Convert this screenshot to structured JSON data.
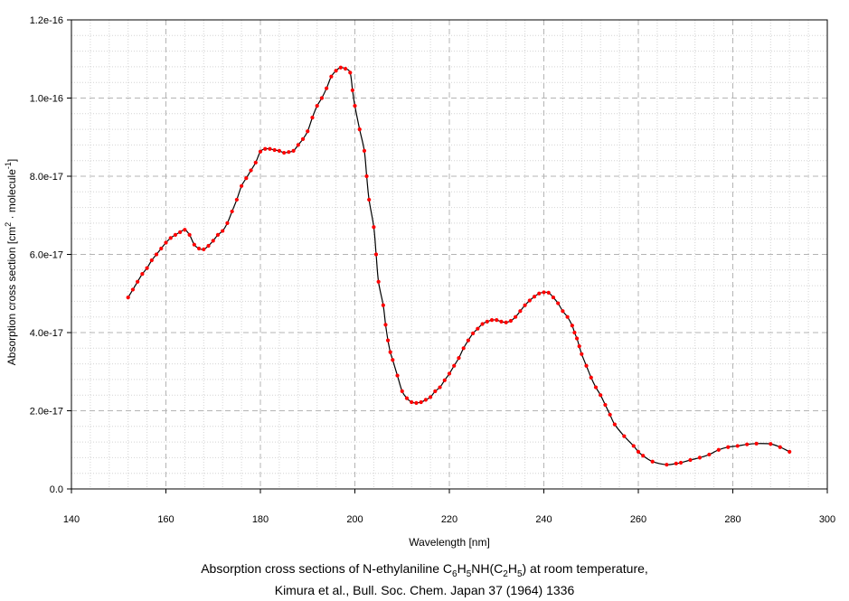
{
  "chart_data": {
    "type": "line",
    "title": "",
    "xlabel": "Wavelength [nm]",
    "ylabel": "Absorption cross section [cm² · molecule⁻¹]",
    "ylabel_parts": {
      "main": "Absorption cross section [cm",
      "sup1": "2",
      "mid": " · molecule",
      "sup2": "-1",
      "end": "]"
    },
    "xlim": [
      140,
      300
    ],
    "ylim": [
      0,
      1.2e-16
    ],
    "x_ticks": [
      140,
      160,
      180,
      200,
      220,
      240,
      260,
      280,
      300
    ],
    "x_tick_labels": [
      "140",
      "160",
      "180",
      "200",
      "220",
      "240",
      "260",
      "280",
      "300"
    ],
    "y_ticks": [
      0,
      2e-17,
      4e-17,
      6e-17,
      8e-17,
      1e-16,
      1.2e-16
    ],
    "y_tick_labels": [
      "0.0",
      "2.0e-17",
      "4.0e-17",
      "6.0e-17",
      "8.0e-17",
      "1.0e-16",
      "1.2e-16"
    ],
    "grid": true,
    "line_color": "#000000",
    "marker_color": "#ff0000",
    "points": [
      [
        152.0,
        4.9e-17
      ],
      [
        153.0,
        5.1e-17
      ],
      [
        154.0,
        5.3e-17
      ],
      [
        155.0,
        5.5e-17
      ],
      [
        156.0,
        5.65e-17
      ],
      [
        157.0,
        5.85e-17
      ],
      [
        158.0,
        6e-17
      ],
      [
        159.0,
        6.15e-17
      ],
      [
        160.0,
        6.3e-17
      ],
      [
        161.0,
        6.42e-17
      ],
      [
        162.0,
        6.5e-17
      ],
      [
        163.0,
        6.57e-17
      ],
      [
        164.0,
        6.63e-17
      ],
      [
        165.0,
        6.5e-17
      ],
      [
        166.0,
        6.25e-17
      ],
      [
        167.0,
        6.15e-17
      ],
      [
        168.0,
        6.13e-17
      ],
      [
        169.0,
        6.22e-17
      ],
      [
        170.0,
        6.35e-17
      ],
      [
        171.0,
        6.5e-17
      ],
      [
        172.0,
        6.6e-17
      ],
      [
        173.0,
        6.8e-17
      ],
      [
        174.0,
        7.1e-17
      ],
      [
        175.0,
        7.4e-17
      ],
      [
        176.0,
        7.75e-17
      ],
      [
        177.0,
        7.95e-17
      ],
      [
        178.0,
        8.15e-17
      ],
      [
        179.0,
        8.35e-17
      ],
      [
        180.0,
        8.63e-17
      ],
      [
        181.0,
        8.7e-17
      ],
      [
        182.0,
        8.7e-17
      ],
      [
        183.0,
        8.67e-17
      ],
      [
        184.0,
        8.65e-17
      ],
      [
        185.0,
        8.6e-17
      ],
      [
        186.0,
        8.62e-17
      ],
      [
        187.0,
        8.65e-17
      ],
      [
        188.0,
        8.8e-17
      ],
      [
        189.0,
        8.95e-17
      ],
      [
        190.0,
        9.15e-17
      ],
      [
        191.0,
        9.5e-17
      ],
      [
        192.0,
        9.8e-17
      ],
      [
        193.0,
        1e-16
      ],
      [
        194.0,
        1.025e-16
      ],
      [
        195.0,
        1.055e-16
      ],
      [
        196.0,
        1.07e-16
      ],
      [
        197.0,
        1.078e-16
      ],
      [
        198.0,
        1.075e-16
      ],
      [
        199.0,
        1.065e-16
      ],
      [
        199.5,
        1.02e-16
      ],
      [
        200.0,
        9.8e-17
      ],
      [
        201.0,
        9.2e-17
      ],
      [
        202.0,
        8.65e-17
      ],
      [
        202.5,
        8e-17
      ],
      [
        203.0,
        7.4e-17
      ],
      [
        204.0,
        6.7e-17
      ],
      [
        204.5,
        6e-17
      ],
      [
        205.0,
        5.3e-17
      ],
      [
        206.0,
        4.7e-17
      ],
      [
        206.5,
        4.2e-17
      ],
      [
        207.0,
        3.8e-17
      ],
      [
        207.5,
        3.5e-17
      ],
      [
        208.0,
        3.3e-17
      ],
      [
        209.0,
        2.9e-17
      ],
      [
        210.0,
        2.5e-17
      ],
      [
        211.0,
        2.32e-17
      ],
      [
        212.0,
        2.22e-17
      ],
      [
        213.0,
        2.2e-17
      ],
      [
        214.0,
        2.22e-17
      ],
      [
        215.0,
        2.28e-17
      ],
      [
        216.0,
        2.35e-17
      ],
      [
        217.0,
        2.5e-17
      ],
      [
        218.0,
        2.6e-17
      ],
      [
        219.0,
        2.78e-17
      ],
      [
        220.0,
        2.95e-17
      ],
      [
        221.0,
        3.15e-17
      ],
      [
        222.0,
        3.35e-17
      ],
      [
        223.0,
        3.6e-17
      ],
      [
        224.0,
        3.8e-17
      ],
      [
        225.0,
        3.98e-17
      ],
      [
        226.0,
        4.1e-17
      ],
      [
        227.0,
        4.22e-17
      ],
      [
        228.0,
        4.28e-17
      ],
      [
        229.0,
        4.32e-17
      ],
      [
        230.0,
        4.32e-17
      ],
      [
        231.0,
        4.28e-17
      ],
      [
        232.0,
        4.26e-17
      ],
      [
        233.0,
        4.3e-17
      ],
      [
        234.0,
        4.4e-17
      ],
      [
        235.0,
        4.55e-17
      ],
      [
        236.0,
        4.7e-17
      ],
      [
        237.0,
        4.82e-17
      ],
      [
        238.0,
        4.92e-17
      ],
      [
        239.0,
        5e-17
      ],
      [
        240.0,
        5.03e-17
      ],
      [
        241.0,
        5.02e-17
      ],
      [
        242.0,
        4.9e-17
      ],
      [
        243.0,
        4.75e-17
      ],
      [
        244.0,
        4.55e-17
      ],
      [
        245.0,
        4.4e-17
      ],
      [
        246.0,
        4.18e-17
      ],
      [
        246.5,
        4e-17
      ],
      [
        247.0,
        3.85e-17
      ],
      [
        247.5,
        3.65e-17
      ],
      [
        248.0,
        3.45e-17
      ],
      [
        249.0,
        3.15e-17
      ],
      [
        250.0,
        2.85e-17
      ],
      [
        251.0,
        2.6e-17
      ],
      [
        252.0,
        2.4e-17
      ],
      [
        253.0,
        2.15e-17
      ],
      [
        254.0,
        1.9e-17
      ],
      [
        255.0,
        1.65e-17
      ],
      [
        257.0,
        1.35e-17
      ],
      [
        259.0,
        1.1e-17
      ],
      [
        260.0,
        9.5e-18
      ],
      [
        261.0,
        8.5e-18
      ],
      [
        263.0,
        7e-18
      ],
      [
        266.0,
        6.2e-18
      ],
      [
        268.0,
        6.5e-18
      ],
      [
        269.0,
        6.7e-18
      ],
      [
        271.0,
        7.4e-18
      ],
      [
        273.0,
        8e-18
      ],
      [
        275.0,
        8.8e-18
      ],
      [
        277.0,
        1e-17
      ],
      [
        279.0,
        1.07e-17
      ],
      [
        281.0,
        1.1e-17
      ],
      [
        283.0,
        1.14e-17
      ],
      [
        285.0,
        1.16e-17
      ],
      [
        288.0,
        1.15e-17
      ],
      [
        290.0,
        1.07e-17
      ],
      [
        292.0,
        9.5e-18
      ]
    ]
  },
  "caption": {
    "line1": {
      "before": "Absorption cross sections of N-ethylaniline C",
      "s1": "6",
      "h": "H",
      "s2": "5",
      "nh": "NH(C",
      "s3": "2",
      "h2": "H",
      "s4": "5",
      "after": ") at room temperature,"
    },
    "line2": "Kimura et al., Bull. Soc. Chem. Japan 37 (1964) 1336"
  }
}
